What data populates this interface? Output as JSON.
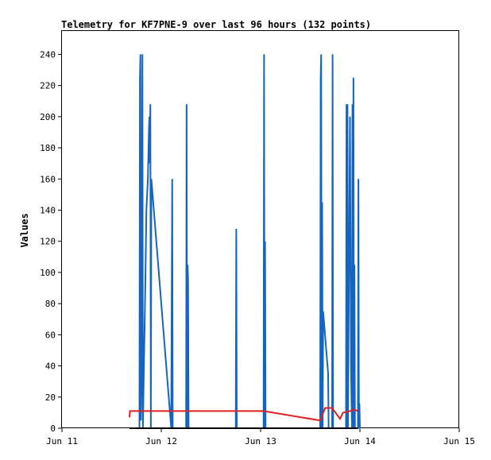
{
  "chart_data": {
    "type": "line",
    "title": "Telemetry for KF7PNE-9 over last 96 hours (132 points)",
    "xlabel": "",
    "ylabel": "Values",
    "ylim": [
      0,
      255
    ],
    "yticks": [
      0,
      20,
      40,
      60,
      80,
      100,
      120,
      140,
      160,
      180,
      200,
      220,
      240
    ],
    "xlim": [
      "Jun 11",
      "Jun 15"
    ],
    "xticks": [
      "Jun 11",
      "Jun 12",
      "Jun 13",
      "Jun 14",
      "Jun 15"
    ],
    "x_unit": "days",
    "grid": false,
    "legend": "none",
    "series": [
      {
        "color": "#1565c0",
        "points": [
          [
            11.78,
            0
          ],
          [
            11.785,
            225
          ],
          [
            11.79,
            240
          ],
          [
            11.795,
            5
          ],
          [
            11.8,
            30
          ],
          [
            11.81,
            240
          ],
          [
            11.815,
            0
          ],
          [
            11.84,
            95
          ],
          [
            11.85,
            140
          ],
          [
            11.865,
            160
          ],
          [
            11.875,
            190
          ],
          [
            11.88,
            200
          ],
          [
            11.885,
            170
          ],
          [
            11.89,
            208
          ],
          [
            11.895,
            0
          ],
          [
            11.9,
            160
          ],
          [
            12.1,
            0
          ],
          [
            12.11,
            160
          ],
          [
            12.115,
            0
          ],
          [
            12.25,
            0
          ],
          [
            12.255,
            208
          ],
          [
            12.26,
            0
          ],
          [
            12.265,
            105
          ],
          [
            12.27,
            95
          ],
          [
            12.275,
            0
          ],
          [
            12.75,
            0
          ],
          [
            12.755,
            128
          ],
          [
            12.76,
            0
          ],
          [
            13.03,
            0
          ],
          [
            13.035,
            240
          ],
          [
            13.04,
            0
          ],
          [
            13.045,
            120
          ],
          [
            13.05,
            0
          ],
          [
            13.6,
            0
          ],
          [
            13.605,
            225
          ],
          [
            13.61,
            240
          ],
          [
            13.615,
            0
          ],
          [
            13.62,
            145
          ],
          [
            13.625,
            0
          ],
          [
            13.63,
            75
          ],
          [
            13.68,
            35
          ],
          [
            13.685,
            0
          ],
          [
            13.72,
            0
          ],
          [
            13.725,
            240
          ],
          [
            13.73,
            0
          ],
          [
            13.86,
            0
          ],
          [
            13.865,
            208
          ],
          [
            13.87,
            0
          ],
          [
            13.875,
            208
          ],
          [
            13.88,
            0
          ],
          [
            13.9,
            200
          ],
          [
            13.91,
            40
          ],
          [
            13.92,
            0
          ],
          [
            13.925,
            208
          ],
          [
            13.93,
            0
          ],
          [
            13.935,
            225
          ],
          [
            13.94,
            0
          ],
          [
            13.945,
            105
          ],
          [
            13.95,
            0
          ],
          [
            13.98,
            0
          ],
          [
            13.985,
            160
          ],
          [
            13.99,
            0
          ],
          [
            13.995,
            16
          ],
          [
            14.0,
            0
          ]
        ]
      },
      {
        "color": "#e02020",
        "points": [
          [
            11.68,
            7
          ],
          [
            11.685,
            11
          ],
          [
            11.72,
            11
          ],
          [
            13.03,
            11
          ],
          [
            13.6,
            5
          ],
          [
            13.65,
            13
          ],
          [
            13.72,
            13
          ],
          [
            13.8,
            6
          ],
          [
            13.83,
            10
          ],
          [
            13.9,
            11
          ],
          [
            13.94,
            12
          ],
          [
            13.98,
            11
          ]
        ]
      },
      {
        "color": "#000000",
        "points": [
          [
            11.68,
            0
          ],
          [
            13.98,
            0
          ]
        ]
      }
    ]
  }
}
